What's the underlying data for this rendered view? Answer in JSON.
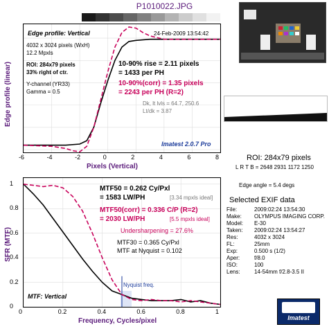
{
  "header": {
    "title": "P1010022.JPG"
  },
  "top_chart": {
    "title": "Edge profile: Vertical",
    "date": "24-Feb-2009 13:54:42",
    "info_lines": [
      "4032 x 3024 pixels (WxH)",
      "12.2 Mpxls"
    ],
    "roi_lines": [
      "ROI: 284x79 pixels",
      "33% right of ctr."
    ],
    "channel_lines": [
      "Y-channel  (YR33)",
      "Gamma = 0.5"
    ],
    "rise_lines": [
      "10-90% rise = 2.11 pixels",
      "= 1433 per PH"
    ],
    "corr_lines": [
      "10-90%(corr) = 1.35 pixels",
      "= 2243 per PH  (R=2)"
    ],
    "levels_lines": [
      "Dk, lt lvls = 64.7, 250.6",
      "Lt/dk = 3.87"
    ],
    "version": "Imatest 2.0.7 Pro",
    "ylabel": "Edge profile (linear)",
    "xlabel": "Pixels (Vertical)",
    "xticks": [
      "-6",
      "-4",
      "-2",
      "0",
      "2",
      "4",
      "6",
      "8"
    ]
  },
  "bottom_chart": {
    "title": "MTF: Vertical",
    "mtf50_lines": [
      "MTF50 = 0.262 Cy/Pxl",
      "= 1583 LW/PH"
    ],
    "mtf50_note": "[3.34 mpxls ideal]",
    "corr_lines": [
      "MTF50(corr) = 0.336 C/P  (R=2)",
      "= 2030 LW/PH"
    ],
    "corr_note": "[5.5 mpxls ideal]",
    "undersharp": "Undersharpening = 27.6%",
    "mtf30": "MTF30 = 0.365 Cy/Pxl",
    "nyq": "MTF at Nyquist = 0.102",
    "nyq_label": "Nyquist freq.",
    "ylabel": "SFR (MTF)",
    "xlabel": "Frequency, Cycles/pixel",
    "xticks": [
      "0",
      "0.2",
      "0.4",
      "0.6",
      "0.8",
      "1"
    ],
    "yticks": [
      "0",
      "0.2",
      "0.4",
      "0.6",
      "0.8",
      "1"
    ]
  },
  "right_panel": {
    "roi_title": "ROI: 284x79 pixels",
    "roi_coords": "L R T B = 2648 2931  1172 1250",
    "edge_angle": "Edge angle = 5.4 degs",
    "exif_title": "Selected EXIF data",
    "exif_rows": [
      {
        "k": "File:",
        "v": "2009:02:24 13:54:30"
      },
      {
        "k": "Make:",
        "v": "OLYMPUS IMAGING CORP."
      },
      {
        "k": "Model:",
        "v": "E-30"
      },
      {
        "k": "Taken:",
        "v": "2009:02:24 13:54:27"
      },
      {
        "k": "Res:",
        "v": "4032 x 3024"
      },
      {
        "k": "FL:",
        "v": "25mm"
      },
      {
        "k": "Exp:",
        "v": "0.500 s  (1/2)"
      },
      {
        "k": "Aper:",
        "v": "f/8.0"
      },
      {
        "k": "ISO:",
        "v": "100"
      },
      {
        "k": "Lens:",
        "v": "14-54mm f/2.8-3.5 II"
      }
    ],
    "logo_text": "Imatest"
  },
  "colors": {
    "accent": "#5a1a7a",
    "corrected": "#c8005a",
    "measured": "#000000",
    "nyquist": "#1a3a9a"
  },
  "chart_data": [
    {
      "type": "line",
      "title": "Edge profile: Vertical",
      "xlabel": "Pixels (Vertical)",
      "ylabel": "Edge profile (linear)",
      "xlim": [
        -6,
        8
      ],
      "ylim": [
        0,
        1.1
      ],
      "series": [
        {
          "x": [
            -6,
            -4,
            -3,
            -2,
            -1.5,
            -1,
            -0.5,
            0,
            0.5,
            1,
            1.5,
            2,
            3,
            4,
            6,
            8
          ],
          "values": [
            0.04,
            0.04,
            0.04,
            0.05,
            0.08,
            0.2,
            0.42,
            0.62,
            0.8,
            0.92,
            0.97,
            0.98,
            0.99,
            0.99,
            0.99,
            0.99
          ]
        },
        {
          "x": [
            -6,
            -4,
            -3,
            -2.5,
            -2,
            -1.5,
            -1,
            -0.5,
            0,
            0.5,
            1,
            1.5,
            2,
            2.5,
            3,
            4,
            6,
            8
          ],
          "values": [
            0.04,
            0.03,
            0.01,
            -0.01,
            -0.02,
            0.03,
            0.2,
            0.45,
            0.7,
            0.92,
            1.05,
            1.1,
            1.09,
            1.05,
            1.02,
            0.99,
            0.99,
            0.99
          ]
        }
      ]
    },
    {
      "type": "line",
      "title": "MTF: Vertical",
      "xlabel": "Frequency, Cycles/pixel",
      "ylabel": "SFR (MTF)",
      "xlim": [
        0,
        1
      ],
      "ylim": [
        0,
        1.05
      ],
      "series": [
        {
          "x": [
            0,
            0.05,
            0.1,
            0.15,
            0.2,
            0.25,
            0.3,
            0.35,
            0.4,
            0.45,
            0.5,
            0.55,
            0.6,
            0.65,
            0.7,
            0.75,
            0.8,
            0.85,
            0.9,
            0.95,
            1.0
          ],
          "values": [
            1.0,
            0.92,
            0.83,
            0.72,
            0.61,
            0.5,
            0.39,
            0.29,
            0.2,
            0.13,
            0.1,
            0.07,
            0.06,
            0.05,
            0.05,
            0.05,
            0.06,
            0.04,
            0.05,
            0.03,
            0.02
          ]
        },
        {
          "x": [
            0,
            0.05,
            0.1,
            0.15,
            0.2,
            0.25,
            0.3,
            0.35,
            0.4,
            0.45,
            0.5,
            0.55,
            0.6,
            0.65,
            0.7,
            0.75,
            0.8,
            0.85,
            0.9,
            0.95,
            1.0
          ],
          "values": [
            1.0,
            0.99,
            0.98,
            0.99,
            0.97,
            0.9,
            0.78,
            0.6,
            0.4,
            0.22,
            0.1,
            0.06,
            0.05,
            0.06,
            0.05,
            0.05,
            0.04,
            0.05,
            0.04,
            0.03,
            0.02
          ]
        }
      ],
      "annotations": [
        "Nyquist freq. at 0.5"
      ]
    }
  ]
}
